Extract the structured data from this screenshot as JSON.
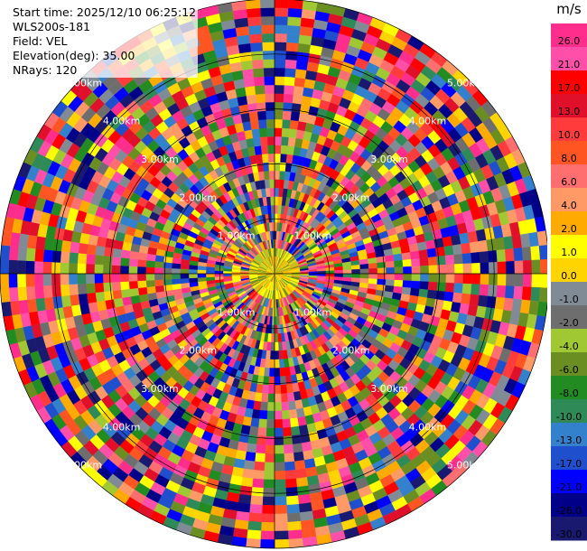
{
  "header": {
    "start_time": "Start time: 2025/12/10 06:25:12",
    "station": "WLS200s-181",
    "field": "Field: VEL",
    "elevation": "Elevation(deg): 35.00",
    "nrays": "NRays: 120"
  },
  "chart_data": {
    "type": "heatmap",
    "projection": "polar (PPI scan)",
    "field": "VEL",
    "n_rays": 120,
    "range_ring_labels": [
      "1.00km",
      "2.00km",
      "3.00km",
      "4.00km",
      "5.00km"
    ],
    "colorbar": {
      "unit": "m/s",
      "ticks": [
        "26.0",
        "21.0",
        "17.0",
        "13.0",
        "10.0",
        "8.0",
        "6.0",
        "4.0",
        "2.0",
        "1.0",
        "0.0",
        "-1.0",
        "-2.0",
        "-4.0",
        "-6.0",
        "-8.0",
        "-10.0",
        "-13.0",
        "-17.0",
        "-21.0",
        "-26.0",
        "-30.0"
      ],
      "colors": [
        "#ff2d8c",
        "#ff4fa8",
        "#ff0000",
        "#e0102a",
        "#ff3b3b",
        "#ff5522",
        "#ff6f6f",
        "#ff9966",
        "#ffaa00",
        "#ffff00",
        "#ffd400",
        "#808b96",
        "#6e6e6e",
        "#a0c832",
        "#6b8e23",
        "#228b22",
        "#2e8b57",
        "#3380cc",
        "#1f4fcc",
        "#0000ff",
        "#000088",
        "#191970"
      ]
    }
  }
}
